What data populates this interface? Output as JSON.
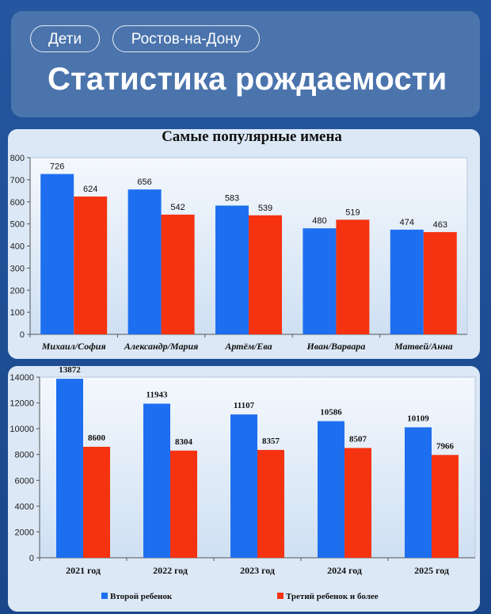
{
  "header": {
    "tags": [
      "Дети",
      "Ростов-на-Дону"
    ],
    "title": "Статистика рождаемости"
  },
  "colors": {
    "blue_series": "#1e6ff0",
    "red_series": "#f53310"
  },
  "chart_data": [
    {
      "type": "bar",
      "title": "Самые популярные имена",
      "categories": [
        "Михаил/София",
        "Александр/Мария",
        "Артём/Ева",
        "Иван/Варвара",
        "Матвей/Анна"
      ],
      "series": [
        {
          "values": [
            726,
            656,
            583,
            480,
            474
          ]
        },
        {
          "values": [
            624,
            542,
            539,
            519,
            463
          ]
        }
      ],
      "y_ticks": [
        "800",
        "700",
        "600",
        "500",
        "400",
        "300",
        "200",
        "100",
        "0"
      ],
      "ylim": [
        0,
        800
      ],
      "grid": false
    },
    {
      "type": "bar",
      "categories": [
        "2021 год",
        "2022 год",
        "2023 год",
        "2024 год",
        "2025 год"
      ],
      "series": [
        {
          "name": "Второй ребенок",
          "values": [
            13872,
            11943,
            11107,
            10586,
            10109
          ]
        },
        {
          "name": "Третий ребенок и более",
          "values": [
            8600,
            8304,
            8357,
            8507,
            7966
          ]
        }
      ],
      "y_ticks": [
        "14000",
        "12000",
        "10000",
        "8000",
        "6000",
        "4000",
        "2000",
        "0"
      ],
      "ylim": [
        0,
        14000
      ],
      "legend": "bottom",
      "grid": false
    }
  ]
}
